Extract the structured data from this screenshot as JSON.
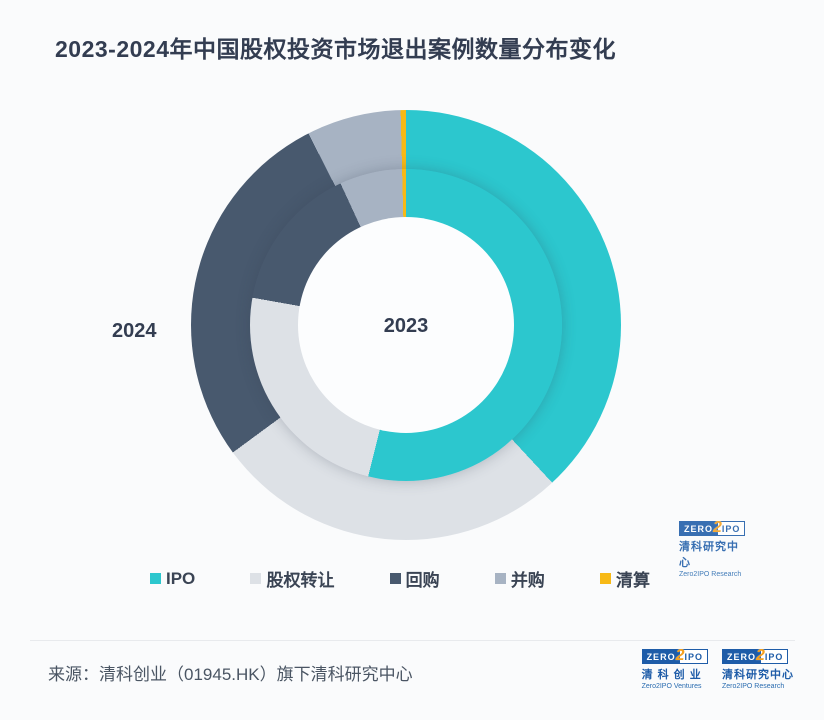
{
  "title": "2023-2024年中国股权投资市场退出案例数量分布变化",
  "chart_data": {
    "type": "pie",
    "subtype": "nested-donut",
    "title": "2023-2024年中国股权投资市场退出案例数量分布变化",
    "categories": [
      "IPO",
      "股权转让",
      "回购",
      "并购",
      "清算"
    ],
    "unit": "percent-share-estimated",
    "series": [
      {
        "name": "2023",
        "ring": "inner",
        "values": [
          53.9,
          23.9,
          15.3,
          6.5,
          0.4
        ]
      },
      {
        "name": "2024",
        "ring": "outer",
        "values": [
          38.1,
          26.8,
          27.6,
          7.1,
          0.4
        ]
      }
    ],
    "colors": [
      "#2CC7CE",
      "#DDE1E6",
      "#48596E",
      "#A7B3C3",
      "#F7B916"
    ],
    "legend_position": "bottom",
    "start_angle_deg": 0,
    "direction": "clockwise"
  },
  "ring_labels": {
    "inner": "2023",
    "outer": "2024"
  },
  "legend": {
    "items": [
      "IPO",
      "股权转让",
      "回购",
      "并购",
      "清算"
    ]
  },
  "watermark": {
    "zero": "ZERO",
    "two": "2",
    "ipo": "IPO",
    "cn": "清科研究中心",
    "en": "Zero2IPO Research"
  },
  "footer": {
    "source": "来源：清科创业（01945.HK）旗下清科研究中心",
    "logos": [
      {
        "zero": "ZERO",
        "two": "2",
        "ipo": "IPO",
        "cn": "清 科 创 业",
        "en": "Zero2IPO Ventures"
      },
      {
        "zero": "ZERO",
        "two": "2",
        "ipo": "IPO",
        "cn": "清科研究中心",
        "en": "Zero2IPO Research"
      }
    ]
  }
}
